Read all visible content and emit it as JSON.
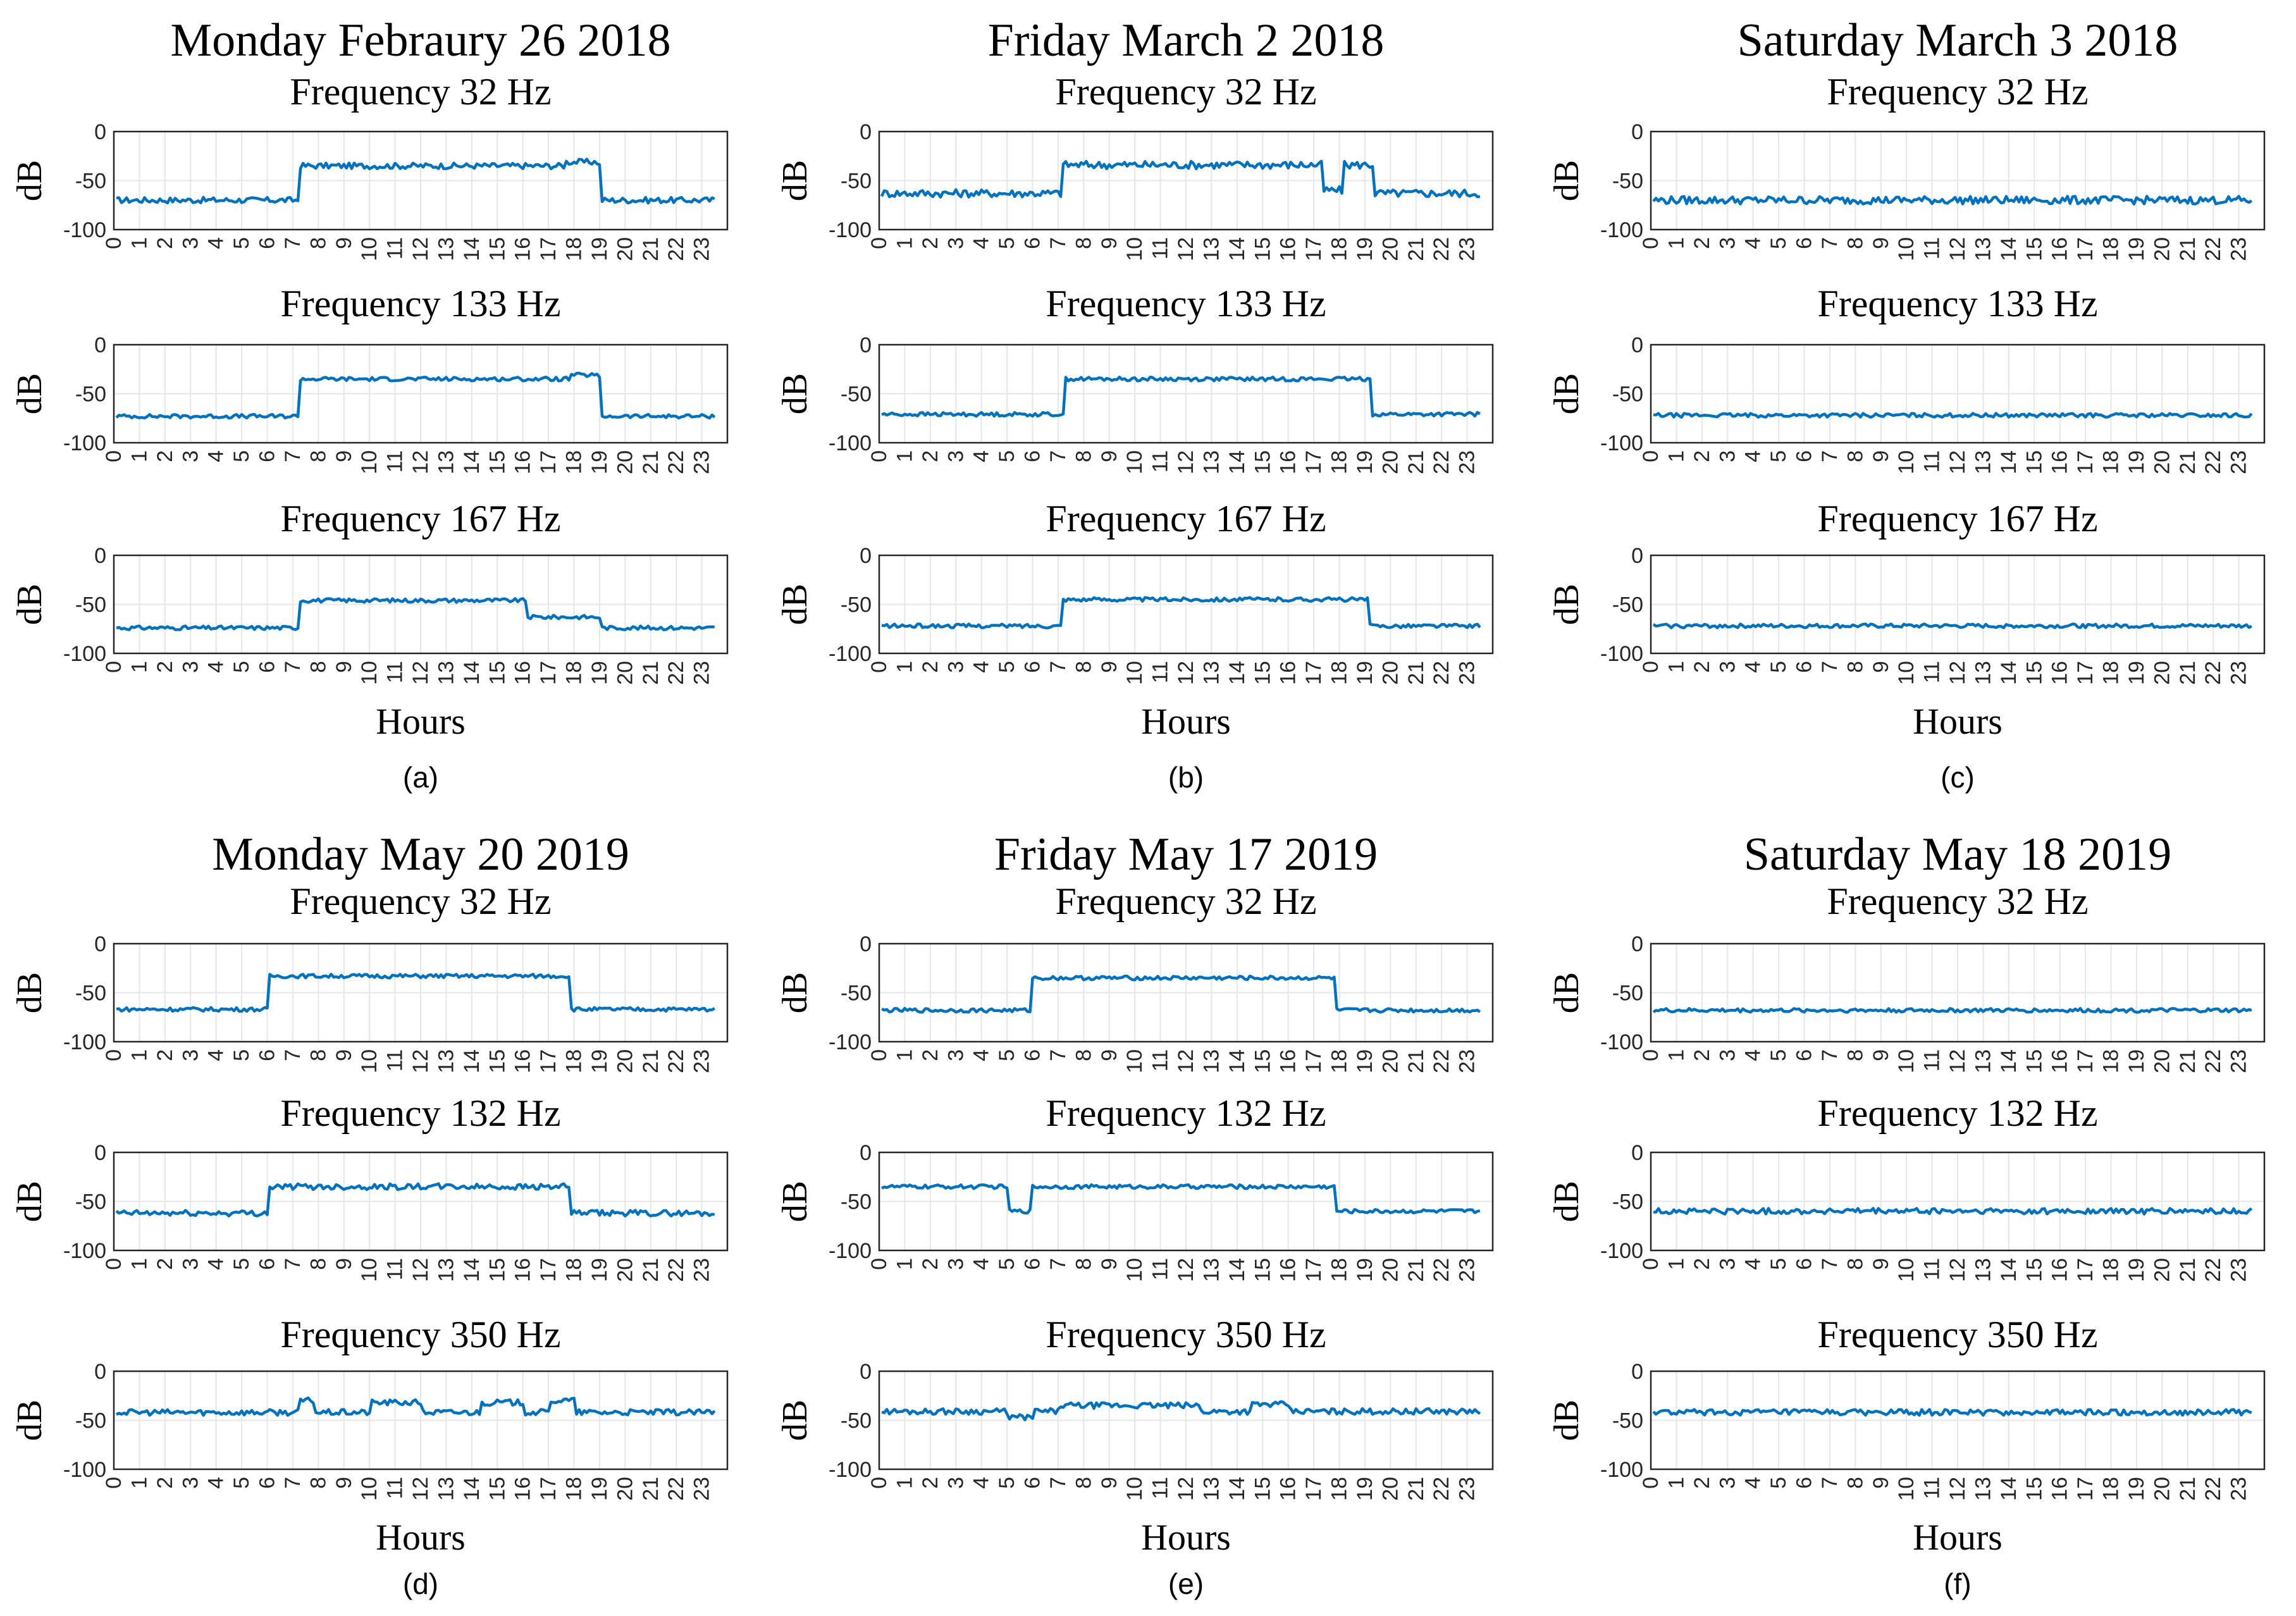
{
  "figure": {
    "panels": [
      {
        "label": "(a)",
        "day_title": "Monday Febraury 26 2018",
        "xlabel": "Hours",
        "subplots": [
          {
            "title": "Frequency 32 Hz",
            "ylabel": "dB"
          },
          {
            "title": "Frequency 133 Hz",
            "ylabel": "dB"
          },
          {
            "title": "Frequency 167 Hz",
            "ylabel": "dB"
          }
        ]
      },
      {
        "label": "(b)",
        "day_title": "Friday March 2 2018",
        "xlabel": "Hours",
        "subplots": [
          {
            "title": "Frequency 32 Hz",
            "ylabel": "dB"
          },
          {
            "title": "Frequency 133 Hz",
            "ylabel": "dB"
          },
          {
            "title": "Frequency 167 Hz",
            "ylabel": "dB"
          }
        ]
      },
      {
        "label": "(c)",
        "day_title": "Saturday March 3 2018",
        "xlabel": "Hours",
        "subplots": [
          {
            "title": "Frequency 32 Hz",
            "ylabel": "dB"
          },
          {
            "title": "Frequency 133 Hz",
            "ylabel": "dB"
          },
          {
            "title": "Frequency 167 Hz",
            "ylabel": "dB"
          }
        ]
      },
      {
        "label": "(d)",
        "day_title": "Monday May 20 2019",
        "xlabel": "Hours",
        "subplots": [
          {
            "title": "Frequency 32 Hz",
            "ylabel": "dB"
          },
          {
            "title": "Frequency 132 Hz",
            "ylabel": "dB"
          },
          {
            "title": "Frequency 350 Hz",
            "ylabel": "dB"
          }
        ]
      },
      {
        "label": "(e)",
        "day_title": "Friday May 17 2019",
        "xlabel": "Hours",
        "subplots": [
          {
            "title": "Frequency 32 Hz",
            "ylabel": "dB"
          },
          {
            "title": "Frequency 132 Hz",
            "ylabel": "dB"
          },
          {
            "title": "Frequency 350 Hz",
            "ylabel": "dB"
          }
        ]
      },
      {
        "label": "(f)",
        "day_title": "Saturday May 18 2019",
        "xlabel": "Hours",
        "subplots": [
          {
            "title": "Frequency 32 Hz",
            "ylabel": "dB"
          },
          {
            "title": "Frequency 132 Hz",
            "ylabel": "dB"
          },
          {
            "title": "Frequency 350 Hz",
            "ylabel": "dB"
          }
        ]
      }
    ]
  },
  "chart_data": {
    "type": "line",
    "line_color": "#0072BD",
    "grid_color": "#e6e6e6",
    "axis_color": "#262626",
    "x_ticks": [
      0,
      1,
      2,
      3,
      4,
      5,
      6,
      7,
      8,
      9,
      10,
      11,
      12,
      13,
      14,
      15,
      16,
      17,
      18,
      19,
      20,
      21,
      22,
      23
    ],
    "y_ticks": [
      0,
      -50,
      -100
    ],
    "xlim": [
      0,
      24
    ],
    "ylim": [
      -100,
      0
    ],
    "xlabel": "Hours",
    "ylabel": "dB",
    "series": [
      {
        "panel": "(a)",
        "title": "Frequency 32 Hz",
        "low": -70,
        "high": -35,
        "on": 7.2,
        "off": 19.1,
        "features": [
          {
            "from": 17.6,
            "to": 19.0,
            "value": -31
          }
        ],
        "jitter": 3
      },
      {
        "panel": "(a)",
        "title": "Frequency 133 Hz",
        "low": -73,
        "high": -35,
        "on": 7.2,
        "off": 19.1,
        "features": [
          {
            "from": 17.8,
            "to": 19.0,
            "value": -31
          }
        ],
        "jitter": 2
      },
      {
        "panel": "(a)",
        "title": "Frequency 167 Hz",
        "low": -74,
        "high": -46,
        "on": 7.2,
        "off": 16.1,
        "features": [
          {
            "from": 16.1,
            "to": 19.1,
            "value": -63
          }
        ],
        "jitter": 2
      },
      {
        "panel": "(b)",
        "title": "Frequency 32 Hz",
        "low": -63,
        "high": -34,
        "on": 7.1,
        "off": 19.4,
        "features": [
          {
            "from": 17.3,
            "to": 18.1,
            "value": -60
          }
        ],
        "jitter": 4
      },
      {
        "panel": "(b)",
        "title": "Frequency 133 Hz",
        "low": -71,
        "high": -35,
        "on": 7.2,
        "off": 19.3,
        "features": [],
        "jitter": 2
      },
      {
        "panel": "(b)",
        "title": "Frequency 167 Hz",
        "low": -72,
        "high": -45,
        "on": 7.1,
        "off": 19.2,
        "features": [],
        "jitter": 2
      },
      {
        "panel": "(c)",
        "title": "Frequency 32 Hz",
        "low": -70,
        "high": -70,
        "on": 0,
        "off": 0,
        "features": [],
        "jitter": 4
      },
      {
        "panel": "(c)",
        "title": "Frequency 133 Hz",
        "low": -72,
        "high": -72,
        "on": 0,
        "off": 0,
        "features": [],
        "jitter": 2
      },
      {
        "panel": "(c)",
        "title": "Frequency 167 Hz",
        "low": -72,
        "high": -72,
        "on": 0,
        "off": 0,
        "features": [],
        "jitter": 2
      },
      {
        "panel": "(d)",
        "title": "Frequency 32 Hz",
        "low": -67,
        "high": -33,
        "on": 6.0,
        "off": 17.8,
        "features": [],
        "jitter": 2
      },
      {
        "panel": "(d)",
        "title": "Frequency 132 Hz",
        "low": -62,
        "high": -35,
        "on": 6.0,
        "off": 17.8,
        "features": [],
        "jitter": 3
      },
      {
        "panel": "(d)",
        "title": "Frequency 350 Hz",
        "low": -42,
        "high": -42,
        "on": 0,
        "off": 0,
        "features": [
          {
            "from": 7.2,
            "to": 7.8,
            "value": -30
          },
          {
            "from": 10.0,
            "to": 12.0,
            "value": -32
          },
          {
            "from": 14.3,
            "to": 16.0,
            "value": -32
          },
          {
            "from": 17.0,
            "to": 18.0,
            "value": -30
          }
        ],
        "jitter": 3
      },
      {
        "panel": "(e)",
        "title": "Frequency 32 Hz",
        "low": -68,
        "high": -35,
        "on": 5.9,
        "off": 17.8,
        "features": [],
        "jitter": 2
      },
      {
        "panel": "(e)",
        "title": "Frequency 132 Hz",
        "low": -60,
        "high": -35,
        "on": 0.1,
        "off": 17.8,
        "features": [
          {
            "from": 5.0,
            "to": 5.9,
            "value": -60
          }
        ],
        "jitter": 2
      },
      {
        "panel": "(e)",
        "title": "Frequency 350 Hz",
        "low": -41,
        "high": -41,
        "on": 0,
        "off": 0,
        "features": [
          {
            "from": 5.0,
            "to": 6.0,
            "value": -47
          },
          {
            "from": 7.0,
            "to": 12.5,
            "value": -35
          },
          {
            "from": 14.5,
            "to": 16.0,
            "value": -34
          }
        ],
        "jitter": 3
      },
      {
        "panel": "(f)",
        "title": "Frequency 32 Hz",
        "low": -68,
        "high": -68,
        "on": 0,
        "off": 0,
        "features": [],
        "jitter": 2
      },
      {
        "panel": "(f)",
        "title": "Frequency 132 Hz",
        "low": -60,
        "high": -60,
        "on": 0,
        "off": 0,
        "features": [],
        "jitter": 3
      },
      {
        "panel": "(f)",
        "title": "Frequency 350 Hz",
        "low": -42,
        "high": -42,
        "on": 0,
        "off": 0,
        "features": [],
        "jitter": 3
      }
    ]
  }
}
